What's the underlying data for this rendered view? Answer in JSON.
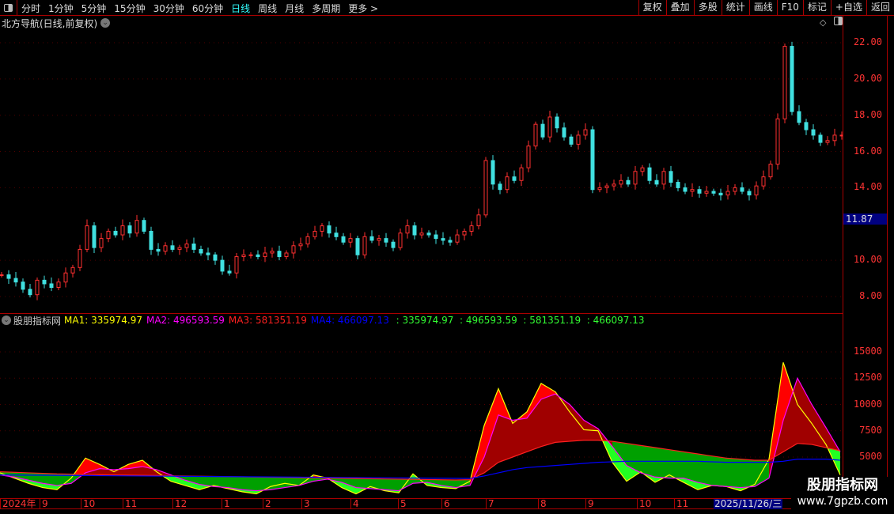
{
  "toolbar": {
    "periods": [
      "分时",
      "1分钟",
      "5分钟",
      "15分钟",
      "30分钟",
      "60分钟",
      "日线",
      "周线",
      "月线",
      "多周期",
      "更多 >"
    ],
    "active": "日线",
    "buttons": [
      "复权",
      "叠加",
      "多股",
      "统计",
      "画线",
      "F10",
      "标记",
      "+自选",
      "返回"
    ]
  },
  "title": "北方导航(日线,前复权)",
  "price_axis": {
    "labels": [
      "22.00",
      "20.00",
      "18.00",
      "16.00",
      "14.00",
      "10.00",
      "8.00"
    ],
    "current_price": "11.87"
  },
  "indicator": {
    "name": "股朋指标网",
    "ma": [
      {
        "label": "MA1: 335974.97",
        "color": "#ffff00"
      },
      {
        "label": "MA2: 496593.59",
        "color": "#ff00ff"
      },
      {
        "label": "MA3: 581351.19",
        "color": "#ff2020"
      },
      {
        "label": "MA4: 466097.13",
        "color": "#0000ff"
      }
    ],
    "extra": " : 335974.97  : 496593.59  : 581351.19  : 466097.13",
    "extra_color": "#33ff33",
    "axis_labels": [
      "15000",
      "12500",
      "10000",
      "7500",
      "5000"
    ]
  },
  "date_axis": {
    "labels": [
      "2024年",
      "9",
      "10",
      "11",
      "12",
      "1",
      "2",
      "3",
      "4",
      "5",
      "6",
      "7",
      "8",
      "9",
      "10",
      "11"
    ],
    "current": "2025/11/26/三"
  },
  "watermark": {
    "line1": "股朋指标网",
    "line2": "www.7gpzb.com"
  },
  "colors": {
    "up": "#ff3030",
    "down": "#40e0e0",
    "grid": "#500000",
    "border": "#aa0000"
  },
  "chart_data": [
    {
      "type": "candlestick",
      "ylim": [
        7,
        23
      ],
      "yticks": [
        8,
        10,
        14,
        16,
        18,
        20,
        22
      ],
      "close": [
        9.2,
        9.0,
        8.8,
        8.4,
        8.1,
        8.9,
        8.7,
        8.5,
        8.8,
        9.3,
        9.6,
        10.6,
        11.9,
        10.7,
        11.2,
        11.6,
        11.4,
        11.9,
        11.5,
        12.2,
        11.6,
        10.6,
        10.5,
        10.8,
        10.6,
        10.7,
        10.9,
        10.6,
        10.4,
        10.3,
        10.0,
        9.4,
        9.3,
        10.2,
        10.3,
        10.3,
        10.2,
        10.4,
        10.5,
        10.2,
        10.4,
        10.8,
        10.9,
        11.3,
        11.6,
        11.9,
        11.5,
        11.3,
        11.0,
        11.2,
        10.3,
        11.3,
        11.1,
        11.2,
        11.0,
        10.7,
        11.5,
        11.9,
        11.4,
        11.5,
        11.4,
        11.2,
        11.1,
        11.0,
        11.4,
        11.6,
        11.9,
        12.5,
        15.5,
        14.2,
        13.9,
        14.6,
        14.4,
        15.1,
        16.3,
        17.5,
        16.8,
        17.9,
        17.3,
        16.8,
        16.4,
        16.9,
        17.2,
        13.9,
        14.0,
        14.1,
        14.2,
        14.4,
        14.2,
        14.9,
        15.1,
        14.4,
        14.2,
        14.9,
        14.3,
        14.0,
        13.8,
        13.9,
        13.7,
        13.8,
        13.7,
        13.6,
        13.8,
        14.0,
        13.8,
        13.6,
        14.1,
        14.6,
        15.3,
        17.8,
        21.8,
        18.2,
        17.6,
        17.2,
        16.9,
        16.5,
        16.6,
        16.9,
        16.9
      ]
    },
    {
      "type": "area",
      "yticks": [
        5000,
        7500,
        10000,
        12500,
        15000
      ],
      "series": [
        {
          "name": "MA1",
          "values": [
            3500,
            3000,
            2500,
            2100,
            1900,
            3000,
            4900,
            4300,
            3600,
            4300,
            4700,
            3600,
            2700,
            2300,
            1900,
            2300,
            2000,
            1700,
            1500,
            2200,
            2500,
            2300,
            3300,
            3000,
            2100,
            1500,
            2200,
            1800,
            1600,
            3400,
            2300,
            2100,
            2000,
            2700,
            8000,
            11500,
            8200,
            9300,
            12000,
            11200,
            9300,
            7600,
            7500,
            4500,
            2700,
            3600,
            2600,
            3300,
            2600,
            1900,
            2300,
            2200,
            1800,
            2400,
            4800,
            14000,
            10000,
            8200,
            6200,
            3300
          ]
        },
        {
          "name": "MA2",
          "values": [
            3300,
            3100,
            2800,
            2500,
            2300,
            2500,
            3500,
            3900,
            3800,
            3900,
            4100,
            3800,
            3300,
            2800,
            2400,
            2200,
            2100,
            1900,
            1800,
            1900,
            2100,
            2300,
            2700,
            2900,
            2600,
            2100,
            2000,
            1900,
            1800,
            2500,
            2600,
            2300,
            2100,
            2300,
            5000,
            9000,
            8500,
            8700,
            10500,
            11000,
            10000,
            8500,
            7700,
            6000,
            4200,
            3500,
            3100,
            3000,
            3000,
            2600,
            2300,
            2200,
            2100,
            2200,
            3000,
            8500,
            12500,
            10000,
            7800,
            5500
          ]
        },
        {
          "name": "MA3",
          "values": [
            3600,
            3550,
            3500,
            3450,
            3400,
            3380,
            3350,
            3320,
            3300,
            3280,
            3260,
            3240,
            3220,
            3200,
            3180,
            3160,
            3140,
            3120,
            3100,
            3080,
            3060,
            3040,
            3020,
            3000,
            2980,
            2960,
            2940,
            2920,
            2900,
            2880,
            2860,
            2840,
            2820,
            2850,
            3500,
            4500,
            5000,
            5500,
            6000,
            6400,
            6500,
            6600,
            6600,
            6500,
            6300,
            6100,
            5900,
            5700,
            5500,
            5300,
            5100,
            4900,
            4800,
            4700,
            4700,
            5500,
            6300,
            6200,
            5900,
            5600
          ]
        },
        {
          "name": "MA4",
          "values": [
            3300,
            3290,
            3280,
            3270,
            3260,
            3250,
            3240,
            3230,
            3220,
            3210,
            3200,
            3190,
            3180,
            3170,
            3160,
            3150,
            3140,
            3130,
            3120,
            3110,
            3100,
            3090,
            3080,
            3070,
            3060,
            3050,
            3040,
            3030,
            3020,
            3010,
            3000,
            2990,
            2980,
            2970,
            3200,
            3500,
            3800,
            4000,
            4100,
            4200,
            4300,
            4400,
            4500,
            4550,
            4600,
            4600,
            4600,
            4600,
            4600,
            4600,
            4550,
            4500,
            4500,
            4500,
            4500,
            4600,
            4800,
            4800,
            4800,
            4700
          ]
        }
      ]
    }
  ]
}
